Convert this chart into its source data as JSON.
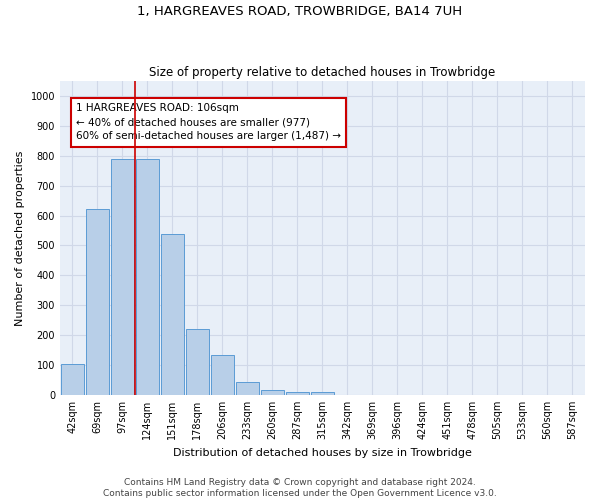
{
  "title": "1, HARGREAVES ROAD, TROWBRIDGE, BA14 7UH",
  "subtitle": "Size of property relative to detached houses in Trowbridge",
  "xlabel": "Distribution of detached houses by size in Trowbridge",
  "ylabel": "Number of detached properties",
  "categories": [
    "42sqm",
    "69sqm",
    "97sqm",
    "124sqm",
    "151sqm",
    "178sqm",
    "206sqm",
    "233sqm",
    "260sqm",
    "287sqm",
    "315sqm",
    "342sqm",
    "369sqm",
    "396sqm",
    "424sqm",
    "451sqm",
    "478sqm",
    "505sqm",
    "533sqm",
    "560sqm",
    "587sqm"
  ],
  "bar_values": [
    103,
    622,
    790,
    790,
    537,
    220,
    133,
    42,
    16,
    10,
    10,
    0,
    0,
    0,
    0,
    0,
    0,
    0,
    0,
    0,
    0
  ],
  "bar_color": "#b8cfe8",
  "bar_edge_color": "#5b9bd5",
  "vline_color": "#cc0000",
  "annotation_text": "1 HARGREAVES ROAD: 106sqm\n← 40% of detached houses are smaller (977)\n60% of semi-detached houses are larger (1,487) →",
  "annotation_box_color": "#ffffff",
  "annotation_box_edge_color": "#cc0000",
  "ylim": [
    0,
    1050
  ],
  "yticks": [
    0,
    100,
    200,
    300,
    400,
    500,
    600,
    700,
    800,
    900,
    1000
  ],
  "grid_color": "#d0d8e8",
  "bg_color": "#e8eff8",
  "footer_line1": "Contains HM Land Registry data © Crown copyright and database right 2024.",
  "footer_line2": "Contains public sector information licensed under the Open Government Licence v3.0.",
  "title_fontsize": 9.5,
  "subtitle_fontsize": 8.5,
  "axis_label_fontsize": 8,
  "tick_fontsize": 7,
  "annotation_fontsize": 7.5,
  "footer_fontsize": 6.5
}
